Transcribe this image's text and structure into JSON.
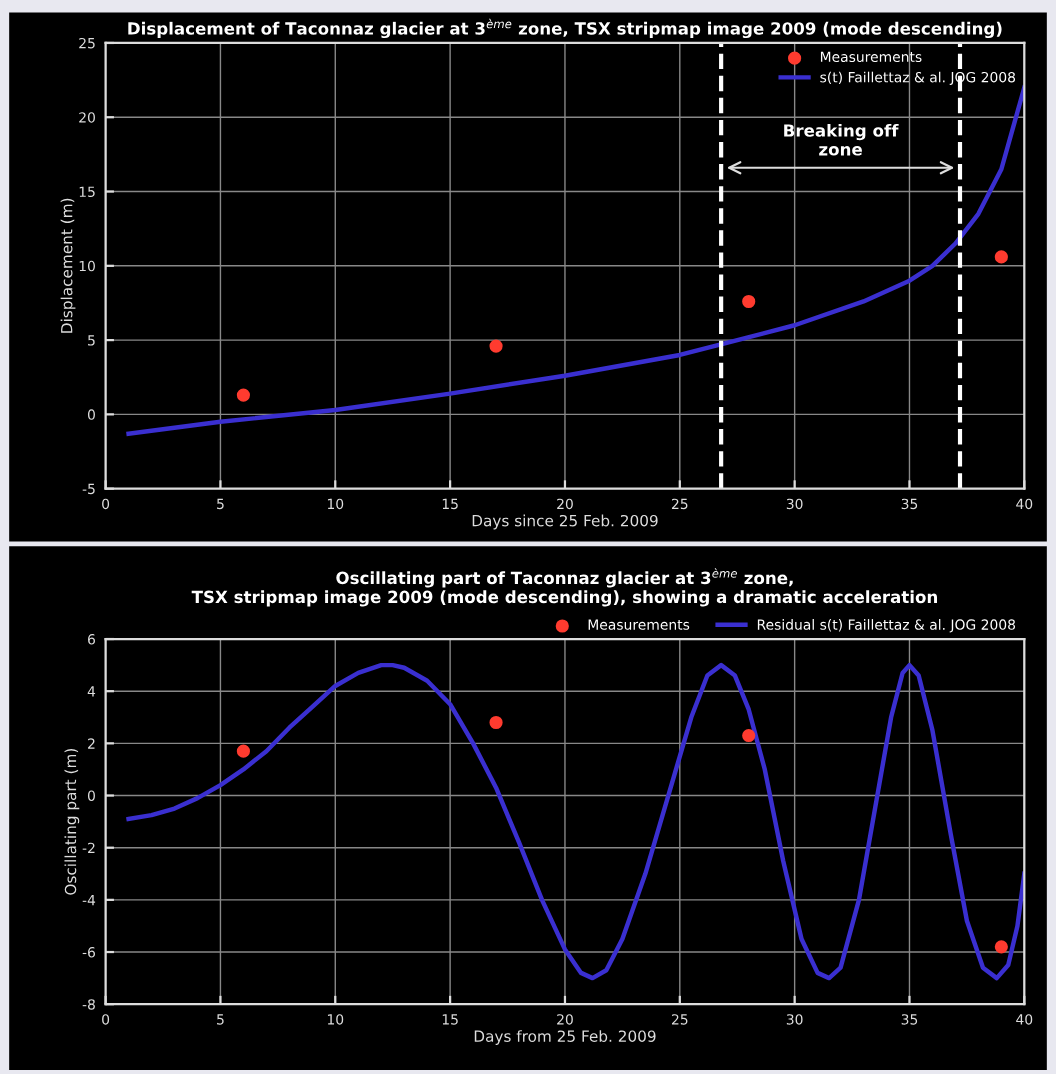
{
  "chart_data": [
    {
      "type": "line",
      "title": "Displacement of Taconnaz glacier at 3$^{ème}$ zone, TSX stripmap image 2009 (mode descending)",
      "xlabel": "Days since 25 Feb. 2009",
      "ylabel": "Displacement (m)",
      "xlim": [
        0,
        40
      ],
      "ylim": [
        -5,
        25
      ],
      "xticks": [
        0,
        5,
        10,
        15,
        20,
        25,
        30,
        35,
        40
      ],
      "yticks": [
        -5,
        0,
        5,
        10,
        15,
        20,
        25
      ],
      "grid": true,
      "legend": "top right",
      "series": [
        {
          "name": "Measurements",
          "type": "scatter",
          "marker": "circle",
          "color": "#ff3b2f",
          "x": [
            6,
            17,
            28,
            39
          ],
          "values": [
            1.3,
            4.6,
            7.6,
            10.6
          ]
        },
        {
          "name": "s(t) Faillettaz & al. JOG 2008",
          "color": "#3a2fd0",
          "x": [
            1,
            5,
            10,
            15,
            20,
            25,
            27,
            30,
            33,
            35,
            36,
            37,
            38,
            39,
            40
          ],
          "values": [
            -1.3,
            -0.5,
            0.3,
            1.4,
            2.6,
            4.0,
            4.8,
            6.0,
            7.6,
            9.0,
            10.0,
            11.5,
            13.5,
            16.5,
            22
          ]
        }
      ],
      "ref_lines": [
        {
          "axis": "x",
          "value": 26.8,
          "color": "#ffffff",
          "line_style": "dashed"
        },
        {
          "axis": "x",
          "value": 37.2,
          "color": "#ffffff",
          "line_style": "dashed"
        }
      ],
      "annotations": [
        "Breaking off\nzone"
      ]
    },
    {
      "type": "line",
      "title": "Oscillating part of Taconnaz glacier at 3$^{ème}$ zone,\nTSX stripmap image 2009 (mode descending), showing a dramatic acceleration",
      "xlabel": "Days from 25 Feb. 2009",
      "ylabel": "Oscillating part (m)",
      "xlim": [
        0,
        40
      ],
      "ylim": [
        -8,
        6
      ],
      "xticks": [
        0,
        5,
        10,
        15,
        20,
        25,
        30,
        35,
        40
      ],
      "yticks": [
        -8,
        -6,
        -4,
        -2,
        0,
        2,
        4,
        6
      ],
      "grid": true,
      "legend": "top right",
      "series": [
        {
          "name": "Measurements",
          "type": "scatter",
          "marker": "circle",
          "color": "#ff3b2f",
          "x": [
            6,
            17,
            28,
            39
          ],
          "values": [
            1.7,
            2.8,
            2.3,
            -5.8
          ]
        },
        {
          "name": "Residual s(t) Faillettaz & al. JOG 2008",
          "color": "#3a2fd0",
          "x": [
            1,
            2,
            3,
            4,
            5,
            6,
            7,
            8,
            9,
            10,
            11,
            12,
            12.5,
            13,
            14,
            15,
            16,
            17,
            18,
            19,
            20,
            20.7,
            21.2,
            21.8,
            22.5,
            23.5,
            24.5,
            25.5,
            26.2,
            26.8,
            27.4,
            28,
            28.7,
            29.5,
            30.3,
            31,
            31.5,
            32,
            32.8,
            33.5,
            34.2,
            34.7,
            35,
            35.4,
            36,
            36.8,
            37.5,
            38.2,
            38.8,
            39.3,
            39.7,
            40
          ],
          "values": [
            -0.9,
            -0.75,
            -0.5,
            -0.1,
            0.4,
            1.0,
            1.7,
            2.6,
            3.4,
            4.2,
            4.7,
            5.0,
            5.0,
            4.9,
            4.4,
            3.5,
            2.0,
            0.3,
            -1.8,
            -4.0,
            -5.9,
            -6.8,
            -7.0,
            -6.7,
            -5.5,
            -3.0,
            0.0,
            3.0,
            4.6,
            5.0,
            4.6,
            3.3,
            1.0,
            -2.5,
            -5.5,
            -6.8,
            -7.0,
            -6.6,
            -4.0,
            -0.5,
            3.0,
            4.7,
            5.0,
            4.6,
            2.5,
            -1.5,
            -4.8,
            -6.6,
            -7.0,
            -6.5,
            -5.0,
            -3.0
          ]
        }
      ]
    }
  ]
}
